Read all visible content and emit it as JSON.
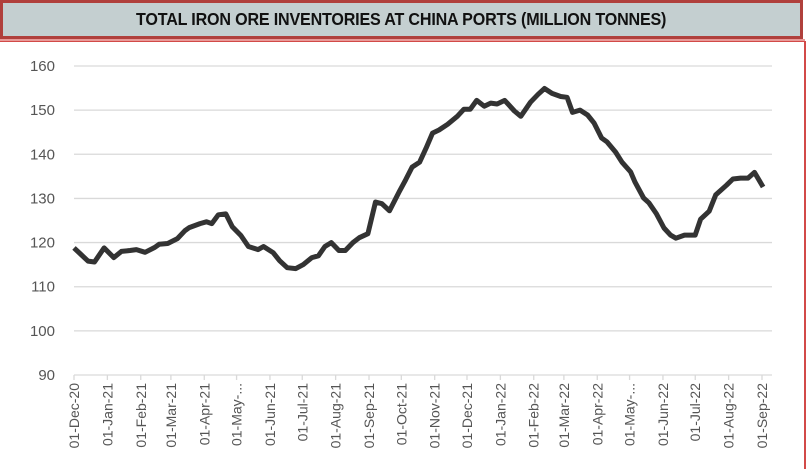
{
  "chart_data": {
    "type": "line",
    "title": "TOTAL IRON ORE INVENTORIES AT CHINA PORTS (MILLION TONNES)",
    "xlabel": "",
    "ylabel": "",
    "ylim": [
      90,
      160
    ],
    "yticks": [
      90,
      100,
      110,
      120,
      130,
      140,
      150,
      160
    ],
    "grid": true,
    "legend": "none",
    "xticks": [
      {
        "label": "01-Dec-20",
        "day": 0
      },
      {
        "label": "01-Jan-21",
        "day": 31
      },
      {
        "label": "01-Feb-21",
        "day": 62
      },
      {
        "label": "01-Mar-21",
        "day": 90
      },
      {
        "label": "01-Apr-21",
        "day": 121
      },
      {
        "label": "01-May-...",
        "day": 151
      },
      {
        "label": "01-Jun-21",
        "day": 182
      },
      {
        "label": "01-Jul-21",
        "day": 212
      },
      {
        "label": "01-Aug-21",
        "day": 243
      },
      {
        "label": "01-Sep-21",
        "day": 274
      },
      {
        "label": "01-Oct-21",
        "day": 304
      },
      {
        "label": "01-Nov-21",
        "day": 335
      },
      {
        "label": "01-Dec-21",
        "day": 365
      },
      {
        "label": "01-Jan-22",
        "day": 396
      },
      {
        "label": "01-Feb-22",
        "day": 427
      },
      {
        "label": "01-Mar-22",
        "day": 455
      },
      {
        "label": "01-Apr-22",
        "day": 486
      },
      {
        "label": "01-May-...",
        "day": 516
      },
      {
        "label": "01-Jun-22",
        "day": 547
      },
      {
        "label": "01-Jul-22",
        "day": 577
      },
      {
        "label": "01-Aug-22",
        "day": 608
      },
      {
        "label": "01-Sep-22",
        "day": 639
      }
    ],
    "xlim_days": [
      0,
      646
    ],
    "series": [
      {
        "name": "Total iron ore inventories",
        "color": "#333333",
        "points_day_value": [
          [
            0,
            118.8
          ],
          [
            6,
            117.4
          ],
          [
            13,
            115.8
          ],
          [
            19,
            115.6
          ],
          [
            28,
            118.8
          ],
          [
            37,
            116.6
          ],
          [
            44,
            118.0
          ],
          [
            52,
            118.2
          ],
          [
            58,
            118.4
          ],
          [
            66,
            117.8
          ],
          [
            75,
            118.9
          ],
          [
            79,
            119.6
          ],
          [
            87,
            119.8
          ],
          [
            96,
            120.9
          ],
          [
            103,
            122.7
          ],
          [
            107,
            123.4
          ],
          [
            117,
            124.3
          ],
          [
            123,
            124.7
          ],
          [
            128,
            124.3
          ],
          [
            134,
            126.3
          ],
          [
            141,
            126.5
          ],
          [
            147,
            123.6
          ],
          [
            155,
            121.6
          ],
          [
            162,
            119.1
          ],
          [
            171,
            118.4
          ],
          [
            176,
            119.1
          ],
          [
            185,
            117.7
          ],
          [
            191,
            115.9
          ],
          [
            198,
            114.3
          ],
          [
            206,
            114.1
          ],
          [
            213,
            115.0
          ],
          [
            221,
            116.6
          ],
          [
            227,
            117.0
          ],
          [
            233,
            119.1
          ],
          [
            239,
            120.0
          ],
          [
            246,
            118.2
          ],
          [
            252,
            118.2
          ],
          [
            259,
            120.0
          ],
          [
            265,
            121.1
          ],
          [
            273,
            122.0
          ],
          [
            280,
            129.2
          ],
          [
            286,
            128.8
          ],
          [
            293,
            127.2
          ],
          [
            302,
            131.5
          ],
          [
            308,
            134.2
          ],
          [
            314,
            137.1
          ],
          [
            321,
            138.2
          ],
          [
            327,
            141.4
          ],
          [
            333,
            144.8
          ],
          [
            339,
            145.5
          ],
          [
            347,
            146.8
          ],
          [
            356,
            148.6
          ],
          [
            362,
            150.2
          ],
          [
            368,
            150.2
          ],
          [
            374,
            152.2
          ],
          [
            381,
            150.9
          ],
          [
            387,
            151.6
          ],
          [
            393,
            151.4
          ],
          [
            400,
            152.2
          ],
          [
            409,
            149.8
          ],
          [
            415,
            148.6
          ],
          [
            424,
            151.8
          ],
          [
            431,
            153.6
          ],
          [
            437,
            154.9
          ],
          [
            444,
            153.8
          ],
          [
            452,
            153.1
          ],
          [
            458,
            152.9
          ],
          [
            463,
            149.5
          ],
          [
            470,
            150.0
          ],
          [
            477,
            148.9
          ],
          [
            483,
            147.1
          ],
          [
            490,
            143.7
          ],
          [
            495,
            142.8
          ],
          [
            503,
            140.5
          ],
          [
            509,
            138.2
          ],
          [
            517,
            136.0
          ],
          [
            521,
            133.7
          ],
          [
            529,
            130.1
          ],
          [
            534,
            129.0
          ],
          [
            541,
            126.5
          ],
          [
            548,
            123.3
          ],
          [
            554,
            121.7
          ],
          [
            559,
            121.0
          ],
          [
            567,
            121.7
          ],
          [
            577,
            121.7
          ],
          [
            582,
            125.3
          ],
          [
            590,
            127.1
          ],
          [
            596,
            130.8
          ],
          [
            606,
            133.0
          ],
          [
            612,
            134.4
          ],
          [
            619,
            134.6
          ],
          [
            626,
            134.6
          ],
          [
            632,
            135.9
          ],
          [
            640,
            132.6
          ]
        ]
      }
    ]
  }
}
